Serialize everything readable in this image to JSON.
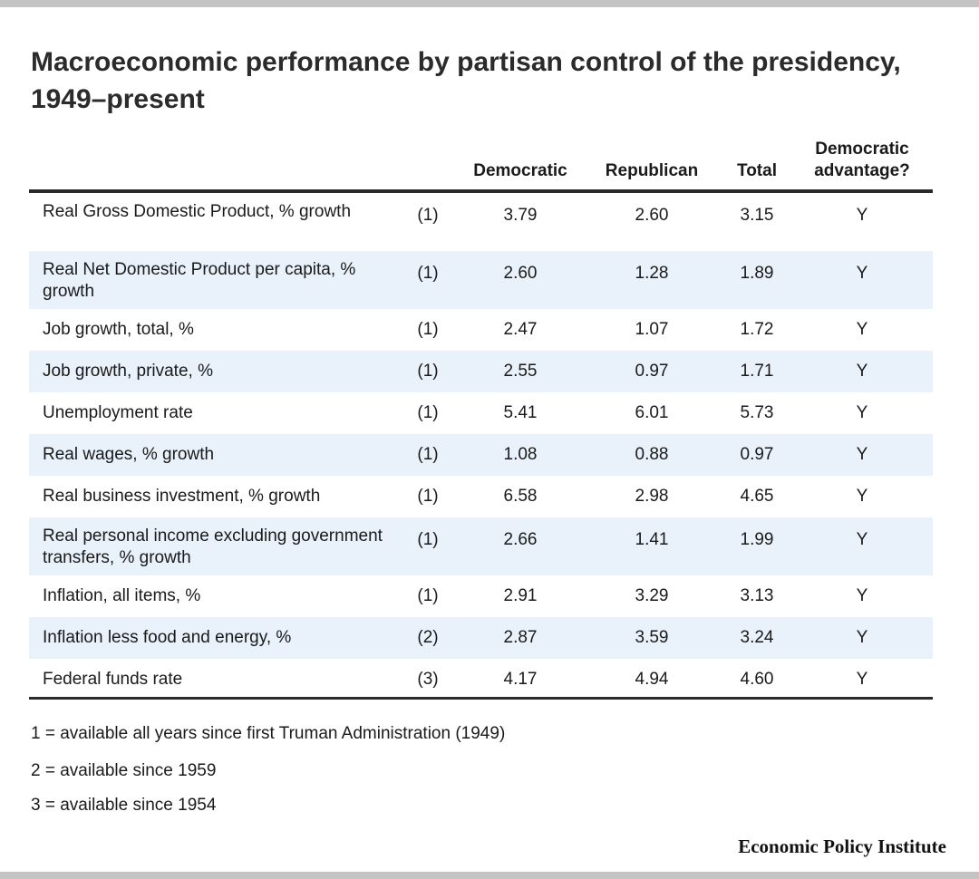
{
  "title": "Macroeconomic performance by partisan control of the presidency, 1949–present",
  "columns": {
    "democratic": "Democratic",
    "republican": "Republican",
    "total": "Total",
    "advantage": "Democratic advantage?"
  },
  "footnotes": [
    "1 = available all years since first Truman Administration (1949)",
    "2 = available since 1959",
    "3 = available since 1954"
  ],
  "source": "Economic Policy Institute",
  "colors": {
    "row_shade": "#e9f1fb",
    "rule": "#2a2a2a",
    "frame": "#c4c4c4"
  },
  "chart_data": {
    "type": "table",
    "title": "Macroeconomic performance by partisan control of the presidency, 1949–present",
    "columns": [
      "",
      "",
      "Democratic",
      "Republican",
      "Total",
      "Democratic advantage?"
    ],
    "rows": [
      {
        "label": "Real Gross Domestic Product, % growth",
        "note": "(1)",
        "democratic": "3.79",
        "republican": "2.60",
        "total": "3.15",
        "advantage": "Y"
      },
      {
        "label": "Real Net Domestic Product per capita, % growth",
        "note": "(1)",
        "democratic": "2.60",
        "republican": "1.28",
        "total": "1.89",
        "advantage": "Y"
      },
      {
        "label": "Job growth, total, %",
        "note": "(1)",
        "democratic": "2.47",
        "republican": "1.07",
        "total": "1.72",
        "advantage": "Y"
      },
      {
        "label": "Job growth, private, %",
        "note": "(1)",
        "democratic": "2.55",
        "republican": "0.97",
        "total": "1.71",
        "advantage": "Y"
      },
      {
        "label": "Unemployment rate",
        "note": "(1)",
        "democratic": "5.41",
        "republican": "6.01",
        "total": "5.73",
        "advantage": "Y"
      },
      {
        "label": "Real wages, % growth",
        "note": "(1)",
        "democratic": "1.08",
        "republican": "0.88",
        "total": "0.97",
        "advantage": "Y"
      },
      {
        "label": "Real business investment, % growth",
        "note": "(1)",
        "democratic": "6.58",
        "republican": "2.98",
        "total": "4.65",
        "advantage": "Y"
      },
      {
        "label": "Real personal income excluding government transfers, % growth",
        "note": "(1)",
        "democratic": "2.66",
        "republican": "1.41",
        "total": "1.99",
        "advantage": "Y"
      },
      {
        "label": "Inflation, all items, %",
        "note": "(1)",
        "democratic": "2.91",
        "republican": "3.29",
        "total": "3.13",
        "advantage": "Y"
      },
      {
        "label": "Inflation less food and energy, %",
        "note": "(2)",
        "democratic": "2.87",
        "republican": "3.59",
        "total": "3.24",
        "advantage": "Y"
      },
      {
        "label": "Federal funds rate",
        "note": "(3)",
        "democratic": "4.17",
        "republican": "4.94",
        "total": "4.60",
        "advantage": "Y"
      }
    ]
  }
}
